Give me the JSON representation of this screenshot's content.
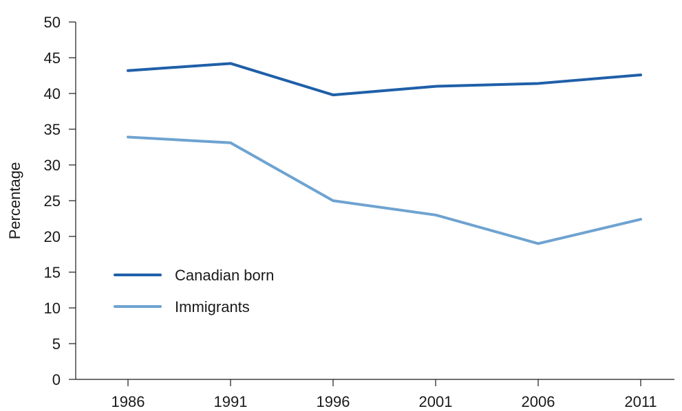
{
  "chart_data": {
    "type": "line",
    "title": "",
    "xlabel": "",
    "ylabel": "Percentage",
    "x": [
      "1986",
      "1991",
      "1996",
      "2001",
      "2006",
      "2011"
    ],
    "ylim": [
      0,
      50
    ],
    "yticks": [
      "0",
      "5",
      "10",
      "15",
      "20",
      "25",
      "30",
      "35",
      "40",
      "45",
      "50"
    ],
    "grid": false,
    "legend_position": "bottom-left",
    "series": [
      {
        "name": "Canadian born",
        "color": "#1f5fa8",
        "values": [
          43.2,
          44.2,
          39.8,
          41.0,
          41.4,
          42.6
        ]
      },
      {
        "name": "Immigrants",
        "color": "#6ea3d0",
        "values": [
          33.9,
          33.1,
          25.0,
          23.0,
          19.0,
          22.4
        ]
      }
    ]
  }
}
